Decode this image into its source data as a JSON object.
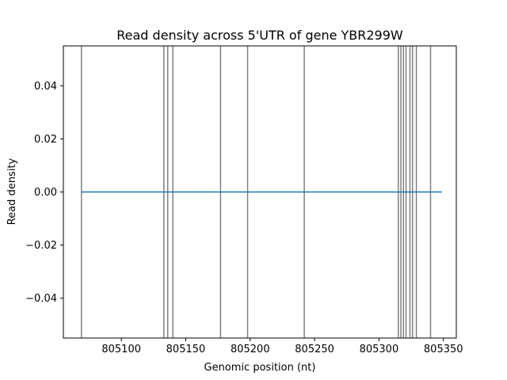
{
  "chart_data": {
    "type": "line",
    "title": "Read density across 5'UTR of gene YBR299W",
    "xlabel": "Genomic position (nt)",
    "ylabel": "Read density",
    "xlim": [
      805055,
      805360
    ],
    "ylim": [
      -0.055,
      0.055
    ],
    "xticks": [
      805100,
      805150,
      805200,
      805250,
      805300,
      805350
    ],
    "xtick_labels": [
      "805100",
      "805150",
      "805200",
      "805250",
      "805300",
      "805350"
    ],
    "yticks": [
      0.04,
      0.02,
      0.0,
      -0.02,
      -0.04
    ],
    "ytick_labels": [
      "0.04",
      "0.02",
      "0.00",
      "−0.02",
      "−0.04"
    ],
    "grid": false,
    "series": [
      {
        "x": [
          805069,
          805349
        ],
        "y": [
          0.0,
          0.0
        ],
        "color": "#1f77b4"
      }
    ],
    "vlines": {
      "x": [
        805069,
        805133,
        805136,
        805140,
        805177,
        805198,
        805242,
        805315,
        805317,
        805319,
        805321,
        805324,
        805326,
        805329,
        805340
      ],
      "color": "#808080"
    }
  }
}
